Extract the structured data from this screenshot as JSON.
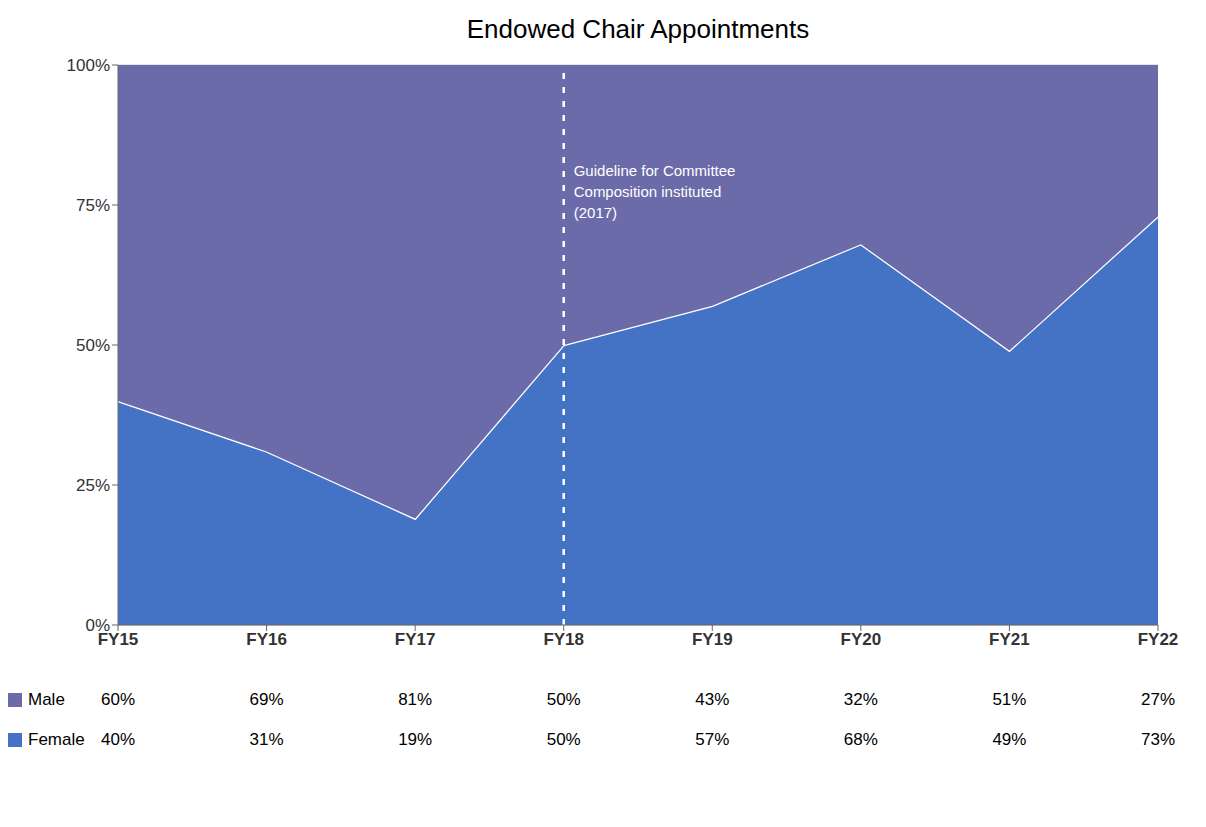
{
  "chart_data": {
    "type": "area",
    "title": "Endowed Chair Appointments",
    "stacked": true,
    "categories": [
      "FY15",
      "FY16",
      "FY17",
      "FY18",
      "FY19",
      "FY20",
      "FY21",
      "FY22"
    ],
    "series": [
      {
        "name": "Female",
        "color": "#4472c4",
        "values": [
          40,
          31,
          19,
          50,
          57,
          68,
          49,
          73
        ],
        "value_labels": [
          "40%",
          "31%",
          "19%",
          "50%",
          "57%",
          "68%",
          "49%",
          "73%"
        ]
      },
      {
        "name": "Male",
        "color": "#6b6baa",
        "values": [
          60,
          69,
          81,
          50,
          43,
          32,
          51,
          27
        ],
        "value_labels": [
          "60%",
          "69%",
          "81%",
          "50%",
          "43%",
          "32%",
          "51%",
          "27%"
        ]
      }
    ],
    "ylim": [
      0,
      100
    ],
    "yticks": [
      {
        "value": 0,
        "label": "0%"
      },
      {
        "value": 25,
        "label": "25%"
      },
      {
        "value": 50,
        "label": "50%"
      },
      {
        "value": 75,
        "label": "75%"
      },
      {
        "value": 100,
        "label": "100%"
      }
    ],
    "grid": true,
    "legend": "bottom",
    "annotations": [
      {
        "text": "Guideline for Committee\nComposition instituted\n(2017)",
        "x": "FY18",
        "y": 83
      }
    ]
  }
}
